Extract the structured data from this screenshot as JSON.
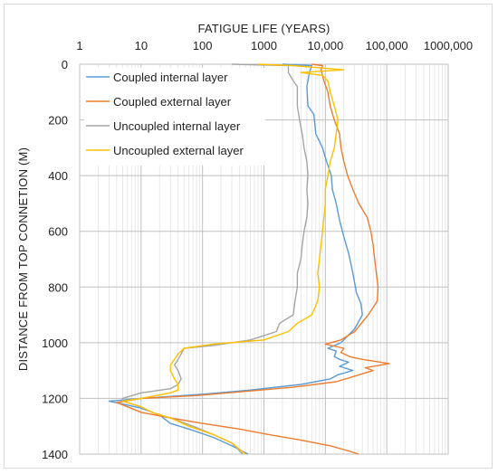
{
  "chart_data": {
    "type": "line",
    "title": "",
    "xlabel": "FATIGUE LIFE (YEARS)",
    "ylabel": "DISTANCE FROM TOP CONNETION (M)",
    "x_scale": "log",
    "xlim": [
      1,
      1000000
    ],
    "ylim": [
      0,
      1400
    ],
    "y_inverted": true,
    "x_ticks": [
      1,
      10,
      100,
      1000,
      10000,
      100000,
      1000000
    ],
    "x_tick_labels": [
      "1",
      "10",
      "100",
      "1000",
      "10,000",
      "100,000",
      "1000,000"
    ],
    "y_ticks": [
      0,
      200,
      400,
      600,
      800,
      1000,
      1200,
      1400
    ],
    "y_tick_labels": [
      "0",
      "200",
      "400",
      "600",
      "800",
      "1000",
      "1200",
      "1400"
    ],
    "grid": true,
    "legend_position": "top-left",
    "series": [
      {
        "name": "Coupled internal layer",
        "color": "#5b9bd5",
        "points": [
          [
            2000,
            0
          ],
          [
            6000,
            5
          ],
          [
            5500,
            30
          ],
          [
            5000,
            80
          ],
          [
            5200,
            150
          ],
          [
            6500,
            180
          ],
          [
            7000,
            250
          ],
          [
            9000,
            300
          ],
          [
            10500,
            350
          ],
          [
            12500,
            400
          ],
          [
            13000,
            450
          ],
          [
            15000,
            500
          ],
          [
            17000,
            560
          ],
          [
            20000,
            620
          ],
          [
            24000,
            680
          ],
          [
            28000,
            750
          ],
          [
            32000,
            820
          ],
          [
            38000,
            860
          ],
          [
            40000,
            900
          ],
          [
            30000,
            950
          ],
          [
            22000,
            980
          ],
          [
            18000,
            1000
          ],
          [
            11000,
            1020
          ],
          [
            15000,
            1030
          ],
          [
            14000,
            1050
          ],
          [
            17000,
            1060
          ],
          [
            24000,
            1070
          ],
          [
            17000,
            1085
          ],
          [
            28000,
            1100
          ],
          [
            16000,
            1115
          ],
          [
            12000,
            1130
          ],
          [
            4000,
            1150
          ],
          [
            600,
            1170
          ],
          [
            100,
            1185
          ],
          [
            10,
            1200
          ],
          [
            3,
            1210
          ],
          [
            5,
            1220
          ],
          [
            10,
            1235
          ],
          [
            20,
            1260
          ],
          [
            30,
            1290
          ],
          [
            60,
            1310
          ],
          [
            150,
            1340
          ],
          [
            300,
            1370
          ],
          [
            550,
            1400
          ]
        ]
      },
      {
        "name": "Coupled external layer",
        "color": "#ed7d31",
        "points": [
          [
            6000,
            0
          ],
          [
            9000,
            5
          ],
          [
            8500,
            20
          ],
          [
            9500,
            60
          ],
          [
            11000,
            100
          ],
          [
            12000,
            150
          ],
          [
            14000,
            200
          ],
          [
            17000,
            250
          ],
          [
            18000,
            300
          ],
          [
            20000,
            350
          ],
          [
            23000,
            400
          ],
          [
            28000,
            450
          ],
          [
            35000,
            500
          ],
          [
            48000,
            550
          ],
          [
            55000,
            600
          ],
          [
            60000,
            650
          ],
          [
            65000,
            720
          ],
          [
            72000,
            800
          ],
          [
            70000,
            850
          ],
          [
            50000,
            900
          ],
          [
            30000,
            960
          ],
          [
            18000,
            990
          ],
          [
            10000,
            1005
          ],
          [
            20000,
            1020
          ],
          [
            18000,
            1035
          ],
          [
            25000,
            1050
          ],
          [
            40000,
            1060
          ],
          [
            110000,
            1075
          ],
          [
            45000,
            1090
          ],
          [
            60000,
            1100
          ],
          [
            30000,
            1120
          ],
          [
            15000,
            1140
          ],
          [
            3000,
            1160
          ],
          [
            500,
            1175
          ],
          [
            80,
            1190
          ],
          [
            10,
            1200
          ],
          [
            4,
            1215
          ],
          [
            6,
            1230
          ],
          [
            10,
            1250
          ],
          [
            30,
            1270
          ],
          [
            100,
            1290
          ],
          [
            400,
            1310
          ],
          [
            1200,
            1330
          ],
          [
            4000,
            1350
          ],
          [
            12000,
            1370
          ],
          [
            25000,
            1390
          ],
          [
            35000,
            1400
          ]
        ]
      },
      {
        "name": "Uncoupled internal layer",
        "color": "#a5a5a5",
        "points": [
          [
            300,
            0
          ],
          [
            2500,
            5
          ],
          [
            2500,
            30
          ],
          [
            3000,
            60
          ],
          [
            3500,
            80
          ],
          [
            3500,
            150
          ],
          [
            3800,
            200
          ],
          [
            4200,
            250
          ],
          [
            4500,
            300
          ],
          [
            5000,
            350
          ],
          [
            5200,
            400
          ],
          [
            5000,
            450
          ],
          [
            5200,
            500
          ],
          [
            5000,
            550
          ],
          [
            4500,
            600
          ],
          [
            4200,
            650
          ],
          [
            4000,
            700
          ],
          [
            3500,
            750
          ],
          [
            3500,
            800
          ],
          [
            3200,
            850
          ],
          [
            3000,
            900
          ],
          [
            1800,
            930
          ],
          [
            1600,
            960
          ],
          [
            600,
            990
          ],
          [
            150,
            1010
          ],
          [
            50,
            1020
          ],
          [
            45,
            1040
          ],
          [
            40,
            1060
          ],
          [
            35,
            1080
          ],
          [
            40,
            1100
          ],
          [
            45,
            1130
          ],
          [
            40,
            1150
          ],
          [
            30,
            1165
          ],
          [
            10,
            1180
          ],
          [
            5,
            1200
          ],
          [
            5,
            1210
          ],
          [
            10,
            1230
          ],
          [
            15,
            1250
          ],
          [
            30,
            1270
          ],
          [
            70,
            1300
          ],
          [
            150,
            1330
          ],
          [
            300,
            1360
          ],
          [
            450,
            1400
          ]
        ]
      },
      {
        "name": "Uncoupled external layer",
        "color": "#ffc000",
        "points": [
          [
            800,
            0
          ],
          [
            3000,
            5
          ],
          [
            20000,
            20
          ],
          [
            4000,
            30
          ],
          [
            9000,
            40
          ],
          [
            11000,
            60
          ],
          [
            12000,
            100
          ],
          [
            14000,
            150
          ],
          [
            16000,
            200
          ],
          [
            15000,
            250
          ],
          [
            14000,
            300
          ],
          [
            12000,
            350
          ],
          [
            11000,
            400
          ],
          [
            10000,
            450
          ],
          [
            10000,
            500
          ],
          [
            9500,
            550
          ],
          [
            9000,
            600
          ],
          [
            8500,
            650
          ],
          [
            8000,
            700
          ],
          [
            7500,
            750
          ],
          [
            8000,
            800
          ],
          [
            7500,
            850
          ],
          [
            6000,
            900
          ],
          [
            3500,
            930
          ],
          [
            2500,
            960
          ],
          [
            1000,
            990
          ],
          [
            150,
            1005
          ],
          [
            50,
            1020
          ],
          [
            40,
            1040
          ],
          [
            35,
            1060
          ],
          [
            30,
            1080
          ],
          [
            30,
            1100
          ],
          [
            35,
            1130
          ],
          [
            40,
            1150
          ],
          [
            40,
            1170
          ],
          [
            30,
            1180
          ],
          [
            10,
            1200
          ],
          [
            5,
            1210
          ],
          [
            10,
            1230
          ],
          [
            15,
            1250
          ],
          [
            30,
            1270
          ],
          [
            60,
            1300
          ],
          [
            150,
            1330
          ],
          [
            300,
            1360
          ],
          [
            500,
            1400
          ]
        ]
      }
    ]
  }
}
